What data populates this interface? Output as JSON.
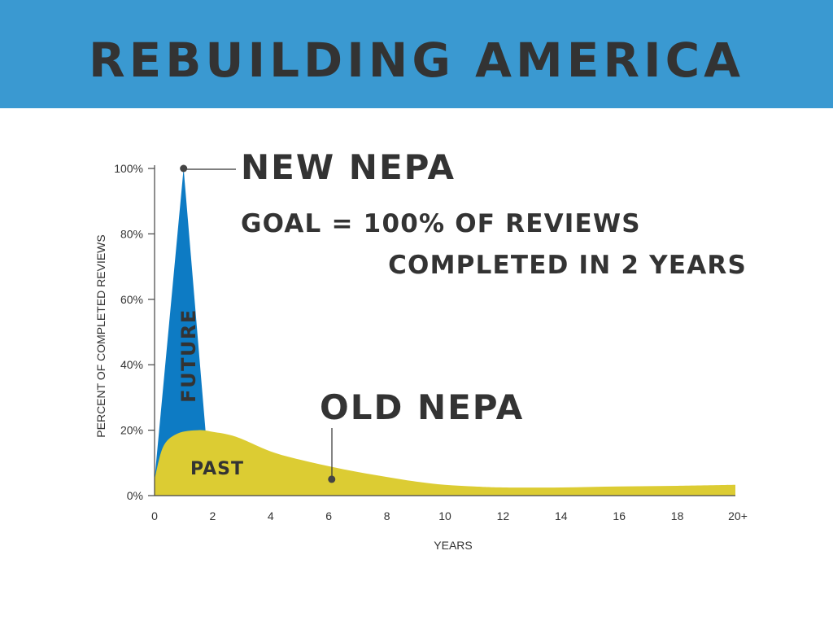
{
  "header": {
    "title": "REBUILDING AMERICA"
  },
  "colors": {
    "banner": "#3a99d1",
    "future": "#0d7bc4",
    "past": "#dccc33",
    "text": "#333333"
  },
  "chart_data": {
    "type": "area",
    "xlabel": "YEARS",
    "ylabel": "PERCENT OF COMPLETED REVIEWS",
    "xlim": [
      0,
      20
    ],
    "ylim": [
      0,
      100
    ],
    "x_ticks": [
      "0",
      "2",
      "4",
      "6",
      "8",
      "10",
      "12",
      "14",
      "16",
      "18",
      "20+"
    ],
    "y_ticks": [
      "0%",
      "20%",
      "40%",
      "60%",
      "80%",
      "100%"
    ],
    "series": [
      {
        "name": "FUTURE",
        "x": [
          0,
          1,
          1.8
        ],
        "y": [
          5,
          100,
          15
        ]
      },
      {
        "name": "PAST",
        "x": [
          0,
          0.3,
          0.8,
          1.5,
          2,
          2.8,
          4,
          5,
          6,
          7,
          8,
          9,
          10,
          11,
          12,
          14,
          16,
          18,
          20
        ],
        "y": [
          5,
          15,
          19,
          20,
          19.5,
          18,
          13.5,
          11,
          9,
          7.2,
          5.7,
          4.3,
          3.3,
          2.8,
          2.5,
          2.5,
          2.8,
          3.0,
          3.3
        ]
      }
    ],
    "annotations": {
      "new_nepa": {
        "label": "NEW NEPA",
        "x": 1,
        "y": 100
      },
      "goal_line1": "GOAL = 100% OF REVIEWS",
      "goal_line2": "COMPLETED IN 2 YEARS",
      "old_nepa": {
        "label": "OLD NEPA",
        "x": 6.1,
        "y": 5
      }
    }
  }
}
